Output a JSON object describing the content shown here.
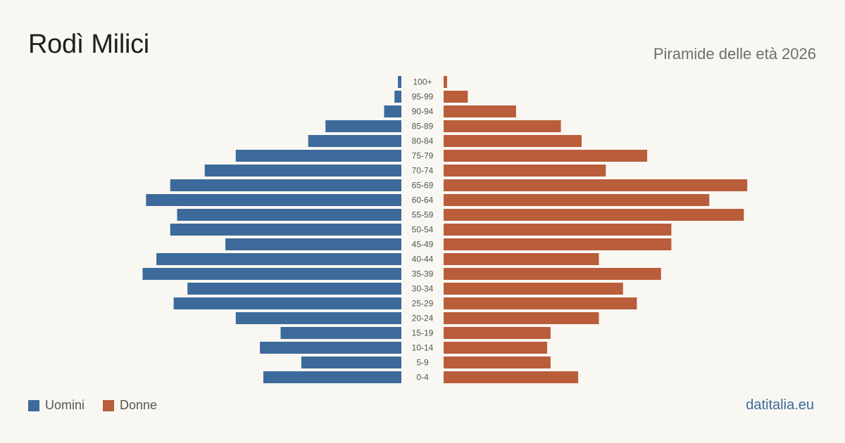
{
  "header": {
    "title": "Rodì Milici",
    "subtitle": "Piramide delle età 2026"
  },
  "legend": {
    "male_label": "Uomini",
    "female_label": "Donne"
  },
  "brand": "datitalia.eu",
  "colors": {
    "male": "#3c6a9b",
    "female": "#b95d3b",
    "background": "#f9f7f2"
  },
  "chart_data": {
    "type": "bar",
    "orientation": "horizontal-pyramid",
    "categories": [
      "100+",
      "95-99",
      "90-94",
      "85-89",
      "80-84",
      "75-79",
      "70-74",
      "65-69",
      "60-64",
      "55-59",
      "50-54",
      "45-49",
      "40-44",
      "35-39",
      "30-34",
      "25-29",
      "20-24",
      "15-19",
      "10-14",
      "5-9",
      "0-4"
    ],
    "series": [
      {
        "name": "Uomini",
        "values": [
          1,
          2,
          5,
          22,
          27,
          48,
          57,
          67,
          74,
          65,
          67,
          51,
          71,
          75,
          62,
          66,
          48,
          35,
          41,
          29,
          40
        ]
      },
      {
        "name": "Donne",
        "values": [
          1,
          7,
          21,
          34,
          40,
          59,
          47,
          88,
          77,
          87,
          66,
          66,
          45,
          63,
          52,
          56,
          45,
          31,
          30,
          31,
          39
        ]
      }
    ],
    "legend_position": "bottom-left",
    "grid": false
  }
}
